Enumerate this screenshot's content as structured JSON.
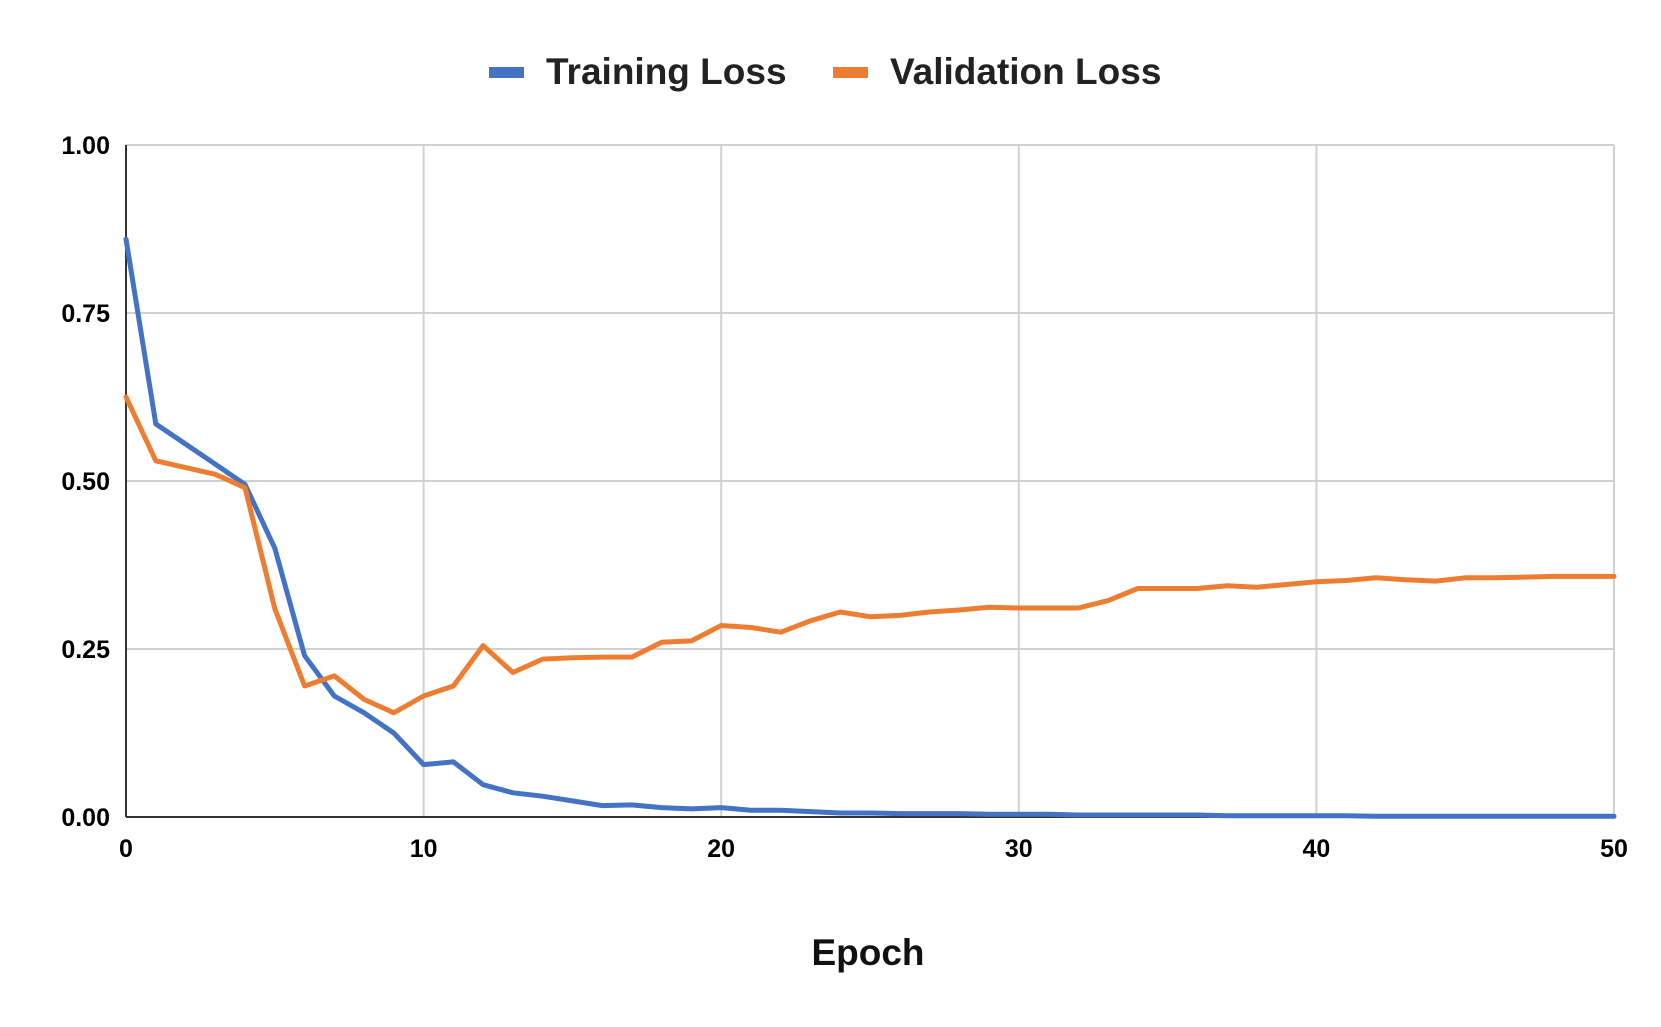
{
  "chart_data": {
    "type": "line",
    "title": "",
    "xlabel": "Epoch",
    "ylabel": "",
    "xlim": [
      0,
      50
    ],
    "ylim": [
      0,
      1
    ],
    "x_ticks": [
      0,
      10,
      20,
      30,
      40,
      50
    ],
    "x_tick_labels": [
      "0",
      "10",
      "20",
      "30",
      "40",
      "50"
    ],
    "y_ticks": [
      0,
      0.25,
      0.5,
      0.75,
      1.0
    ],
    "y_tick_labels": [
      "0.00",
      "0.25",
      "0.50",
      "0.75",
      "1.00"
    ],
    "grid": true,
    "legend_position": "top-center",
    "x": [
      0,
      1,
      2,
      3,
      4,
      5,
      6,
      7,
      8,
      9,
      10,
      11,
      12,
      13,
      14,
      15,
      16,
      17,
      18,
      19,
      20,
      21,
      22,
      23,
      24,
      25,
      26,
      27,
      28,
      29,
      30,
      31,
      32,
      33,
      34,
      35,
      36,
      37,
      38,
      39,
      40,
      41,
      42,
      43,
      44,
      45,
      46,
      47,
      48,
      49,
      50
    ],
    "series": [
      {
        "name": "Training Loss",
        "color": "#4472c4",
        "values": [
          0.86,
          0.585,
          0.555,
          0.525,
          0.495,
          0.4,
          0.24,
          0.18,
          0.155,
          0.125,
          0.078,
          0.082,
          0.048,
          0.036,
          0.031,
          0.024,
          0.017,
          0.018,
          0.014,
          0.012,
          0.014,
          0.01,
          0.01,
          0.008,
          0.006,
          0.006,
          0.005,
          0.005,
          0.005,
          0.004,
          0.004,
          0.004,
          0.003,
          0.003,
          0.003,
          0.003,
          0.003,
          0.002,
          0.002,
          0.002,
          0.002,
          0.002,
          0.001,
          0.001,
          0.001,
          0.001,
          0.001,
          0.001,
          0.001,
          0.001,
          0.001
        ]
      },
      {
        "name": "Validation Loss",
        "color": "#ed7d31",
        "values": [
          0.625,
          0.53,
          0.52,
          0.51,
          0.49,
          0.31,
          0.195,
          0.21,
          0.175,
          0.155,
          0.18,
          0.195,
          0.255,
          0.215,
          0.235,
          0.237,
          0.238,
          0.238,
          0.26,
          0.262,
          0.285,
          0.282,
          0.275,
          0.292,
          0.305,
          0.298,
          0.3,
          0.305,
          0.308,
          0.312,
          0.311,
          0.311,
          0.311,
          0.322,
          0.34,
          0.34,
          0.34,
          0.344,
          0.342,
          0.346,
          0.35,
          0.352,
          0.356,
          0.353,
          0.351,
          0.356,
          0.356,
          0.357,
          0.358,
          0.358,
          0.358
        ]
      }
    ]
  }
}
